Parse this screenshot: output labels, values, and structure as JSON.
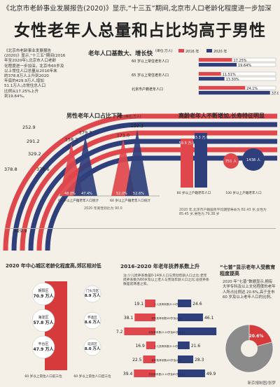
{
  "header": {
    "top_title": "《北京市老龄事业发展报告(2020)》显示,“十三五”期间,北京市人口老龄化程度进一步加深",
    "main_title": "女性老年人总量和占比均高于男性"
  },
  "intro_text": [
    "《北京市老龄事业发展报告",
    "(2020)》显示,“十三五”期间(2016",
    "年至2020年),北京市人口老龄",
    "化程度进一步加深。北京市60岁及",
    "以上常住人口总量从2016年末",
    "的378.8万人上升到2020",
    "年底的429.9万人,增加",
    "51.1万人;占常住总人口",
    "比例从17.25%上升",
    "到19.64%。"
  ],
  "colors": {
    "y2016": "#e0474c",
    "y2020": "#2e3f7c",
    "accent_red": "#d63a3a",
    "blue_light": "#3d4f8c",
    "bg": "#f4f0e7"
  },
  "chart_data": [
    {
      "id": "base_increase",
      "type": "bar",
      "title": "老年人口基数大、增长快",
      "unit_label": "(单位:万人)",
      "legend": [
        "2016 年",
        "2020 年"
      ],
      "arc_values": [
        {
          "series": "2016",
          "values": [
            378.8,
            252.9,
            291.2,
            378.6
          ]
        },
        {
          "series": "2020",
          "values": [
            429.9,
            329.2
          ]
        }
      ],
      "bars": [
        {
          "label": "60 岁以上常住老年人口",
          "y2016": "17.25%",
          "y2020": "19.64%"
        },
        {
          "label": "65 岁以上常住老年人口",
          "y2016": "11.51%",
          "y2020": "13.30%"
        },
        {
          "label": "北京市户籍老年人口",
          "y2016": "24.1%",
          "y2020": "37.0%"
        }
      ]
    },
    {
      "id": "male_share_down",
      "type": "bar",
      "title": "男性老年人口占比下降",
      "unit_label": "(单位:万人)",
      "groups": [
        {
          "label": "60 岁以上户籍老年人口统计",
          "y2016_value": 158.2,
          "y2020_value": 179.3,
          "y2016_pct": "48.0%",
          "y2020_pct": "47.4%"
        },
        {
          "label": "60 岁以上户籍老年人口统计",
          "y2016_value": 171.0,
          "y2020_value": 199.3,
          "y2016_pct": "52.0%",
          "y2020_pct": "52.6%"
        }
      ],
      "note": "2020 年底性别比为 90.0"
    },
    {
      "id": "longevity",
      "type": "bar",
      "title": "高龄老年人不断增加,长寿特征明显",
      "bars": [
        {
          "label": "80 岁以上户籍老年人口",
          "y2016": "59.5 万人",
          "y2020": "63.3 万人"
        }
      ],
      "circles": [
        {
          "label": "100 岁以上户籍老年人口",
          "y2016": "751 人",
          "y2020": "1438 人"
        }
      ],
      "note": "2020 年,北京市户籍居民平均期望寿命为 82.43 岁,女性为 85.45 岁,男性为 79.38 岁"
    },
    {
      "id": "district_aging",
      "type": "table",
      "title": "2020 年中心城区老龄化程度高,郊区相对低",
      "left": [
        {
          "name": "朝阳区",
          "value": "70.9 万人"
        },
        {
          "name": "海淀区",
          "value": "57.8 万人"
        },
        {
          "name": "丰台区",
          "value": "47.9 万人"
        }
      ],
      "right": [
        {
          "name": "门头沟区",
          "value": "8.9 万人"
        },
        {
          "name": "怀柔区",
          "value": "8.6 万人"
        },
        {
          "name": "延庆区",
          "value": "8.0 万人"
        }
      ],
      "left_caption": "60 岁以上常住人口前三位",
      "right_caption": "60 岁以上常住人口后三位"
    },
    {
      "id": "dependency_ratio",
      "type": "bar",
      "title": "2016-2020 年老年抚养系数上升",
      "note": "注:少儿抚养系数是0-14岁人口与劳动年龄人口之比;老年抚养系数为60岁及以上老人与劳动年龄人口之比;总抚养系数是前两者之和。",
      "rows": [
        {
          "label": "少儿抚养系数(0-14岁)",
          "y2016": 19.1,
          "y2020": 24.6
        },
        {
          "label": "老年抚养系数(60岁及以上)",
          "y2016": 38.1,
          "y2020": 46.1
        },
        {
          "label": "总抚养系数(0-14岁及60岁以上)",
          "y2016": 57.2,
          "y2020": 70.7
        },
        {
          "label": "少儿抚养系数(0-14岁)",
          "y2016": 16.9,
          "y2020": 21.6
        },
        {
          "label": "老年抚养系数(65岁及以上)",
          "y2016": 22.5,
          "y2020": 28.3
        },
        {
          "label": "总抚养系数(0-14岁及65岁以上)",
          "y2016": 39.4,
          "y2020": 49.9
        }
      ]
    },
    {
      "id": "education",
      "type": "pie",
      "title": "“七普”显示老年人受教育程度提高",
      "text": "2020 年“七普”数据显示,拥有大学专科及以上文化程度的老年人所占比例达 20.6%,高于全市 60 岁及以上老年人口的比例。",
      "slices": [
        {
          "label": "大学专科及以上",
          "value": 20.6
        },
        {
          "label": "其他",
          "value": 79.4
        }
      ],
      "highlight": "20.6%"
    }
  ],
  "footer": "新京报制图/张梦"
}
